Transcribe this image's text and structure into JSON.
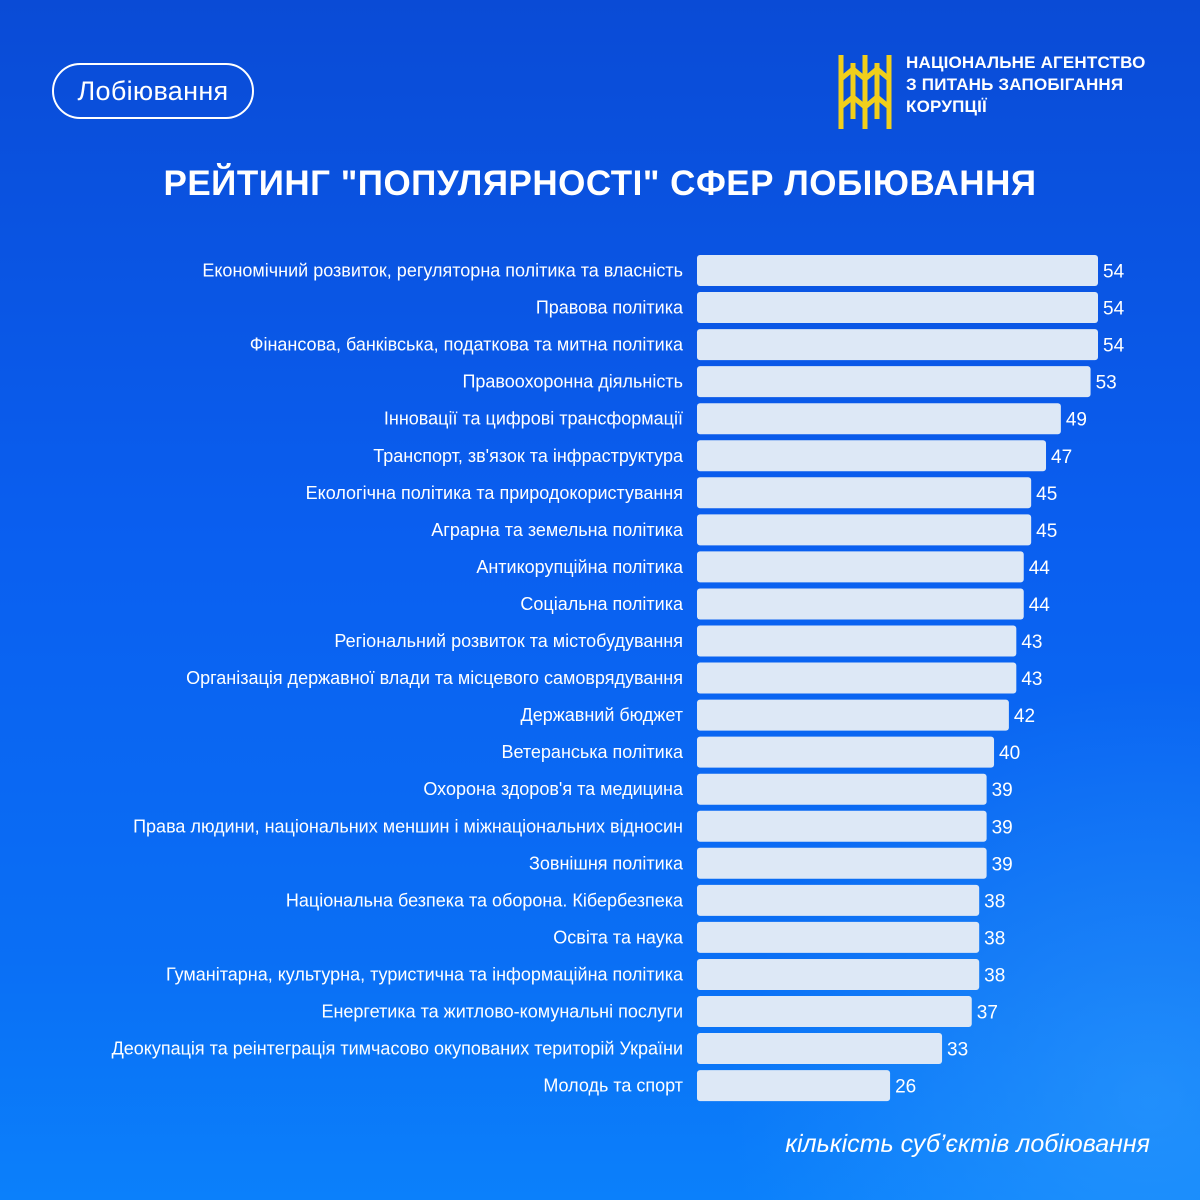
{
  "header": {
    "tag": "Лобіювання",
    "org_lines": [
      "НАЦІОНАЛЬНЕ АГЕНТСТВО",
      "З ПИТАНЬ ЗАПОБІГАННЯ",
      "КОРУПЦІЇ"
    ]
  },
  "colors": {
    "bar": "#dde8f6",
    "logo_yellow": "#f1cf1b",
    "text": "#ffffff"
  },
  "chart_data": {
    "type": "bar",
    "orientation": "horizontal",
    "title": "РЕЙТИНГ \"ПОПУЛЯРНОСТІ\" СФЕР ЛОБІЮВАННЯ",
    "xlabel": "кількість суб’єктів лобіювання",
    "categories": [
      "Економічний розвиток, регуляторна політика та власність",
      "Правова політика",
      "Фінансова, банківська, податкова та митна політика",
      "Правоохоронна діяльність",
      "Інновації та цифрові трансформації",
      "Транспорт, зв'язок та інфраструктура",
      "Екологічна політика та природокористування",
      "Аграрна та земельна політика",
      "Антикорупційна політика",
      "Соціальна політика",
      "Регіональний розвиток та містобудування",
      "Організація державної влади та місцевого самоврядування",
      "Державний бюджет",
      "Ветеранська політика",
      "Охорона здоров'я та медицина",
      "Права людини, національних меншин і міжнаціональних відносин",
      "Зовнішня політика",
      "Національна безпека та оборона. Кібербезпека",
      "Освіта та наука",
      "Гуманітарна, культурна, туристична та інформаційна політика",
      "Енергетика та житлово-комунальні послуги",
      "Деокупація та реінтеграція тимчасово окупованих територій України",
      "Молодь та спорт"
    ],
    "values": [
      54,
      54,
      54,
      53,
      49,
      47,
      45,
      45,
      44,
      44,
      43,
      43,
      42,
      40,
      39,
      39,
      39,
      38,
      38,
      38,
      37,
      33,
      26
    ],
    "xlim": [
      0,
      54
    ],
    "grid": false,
    "legend": "none"
  }
}
